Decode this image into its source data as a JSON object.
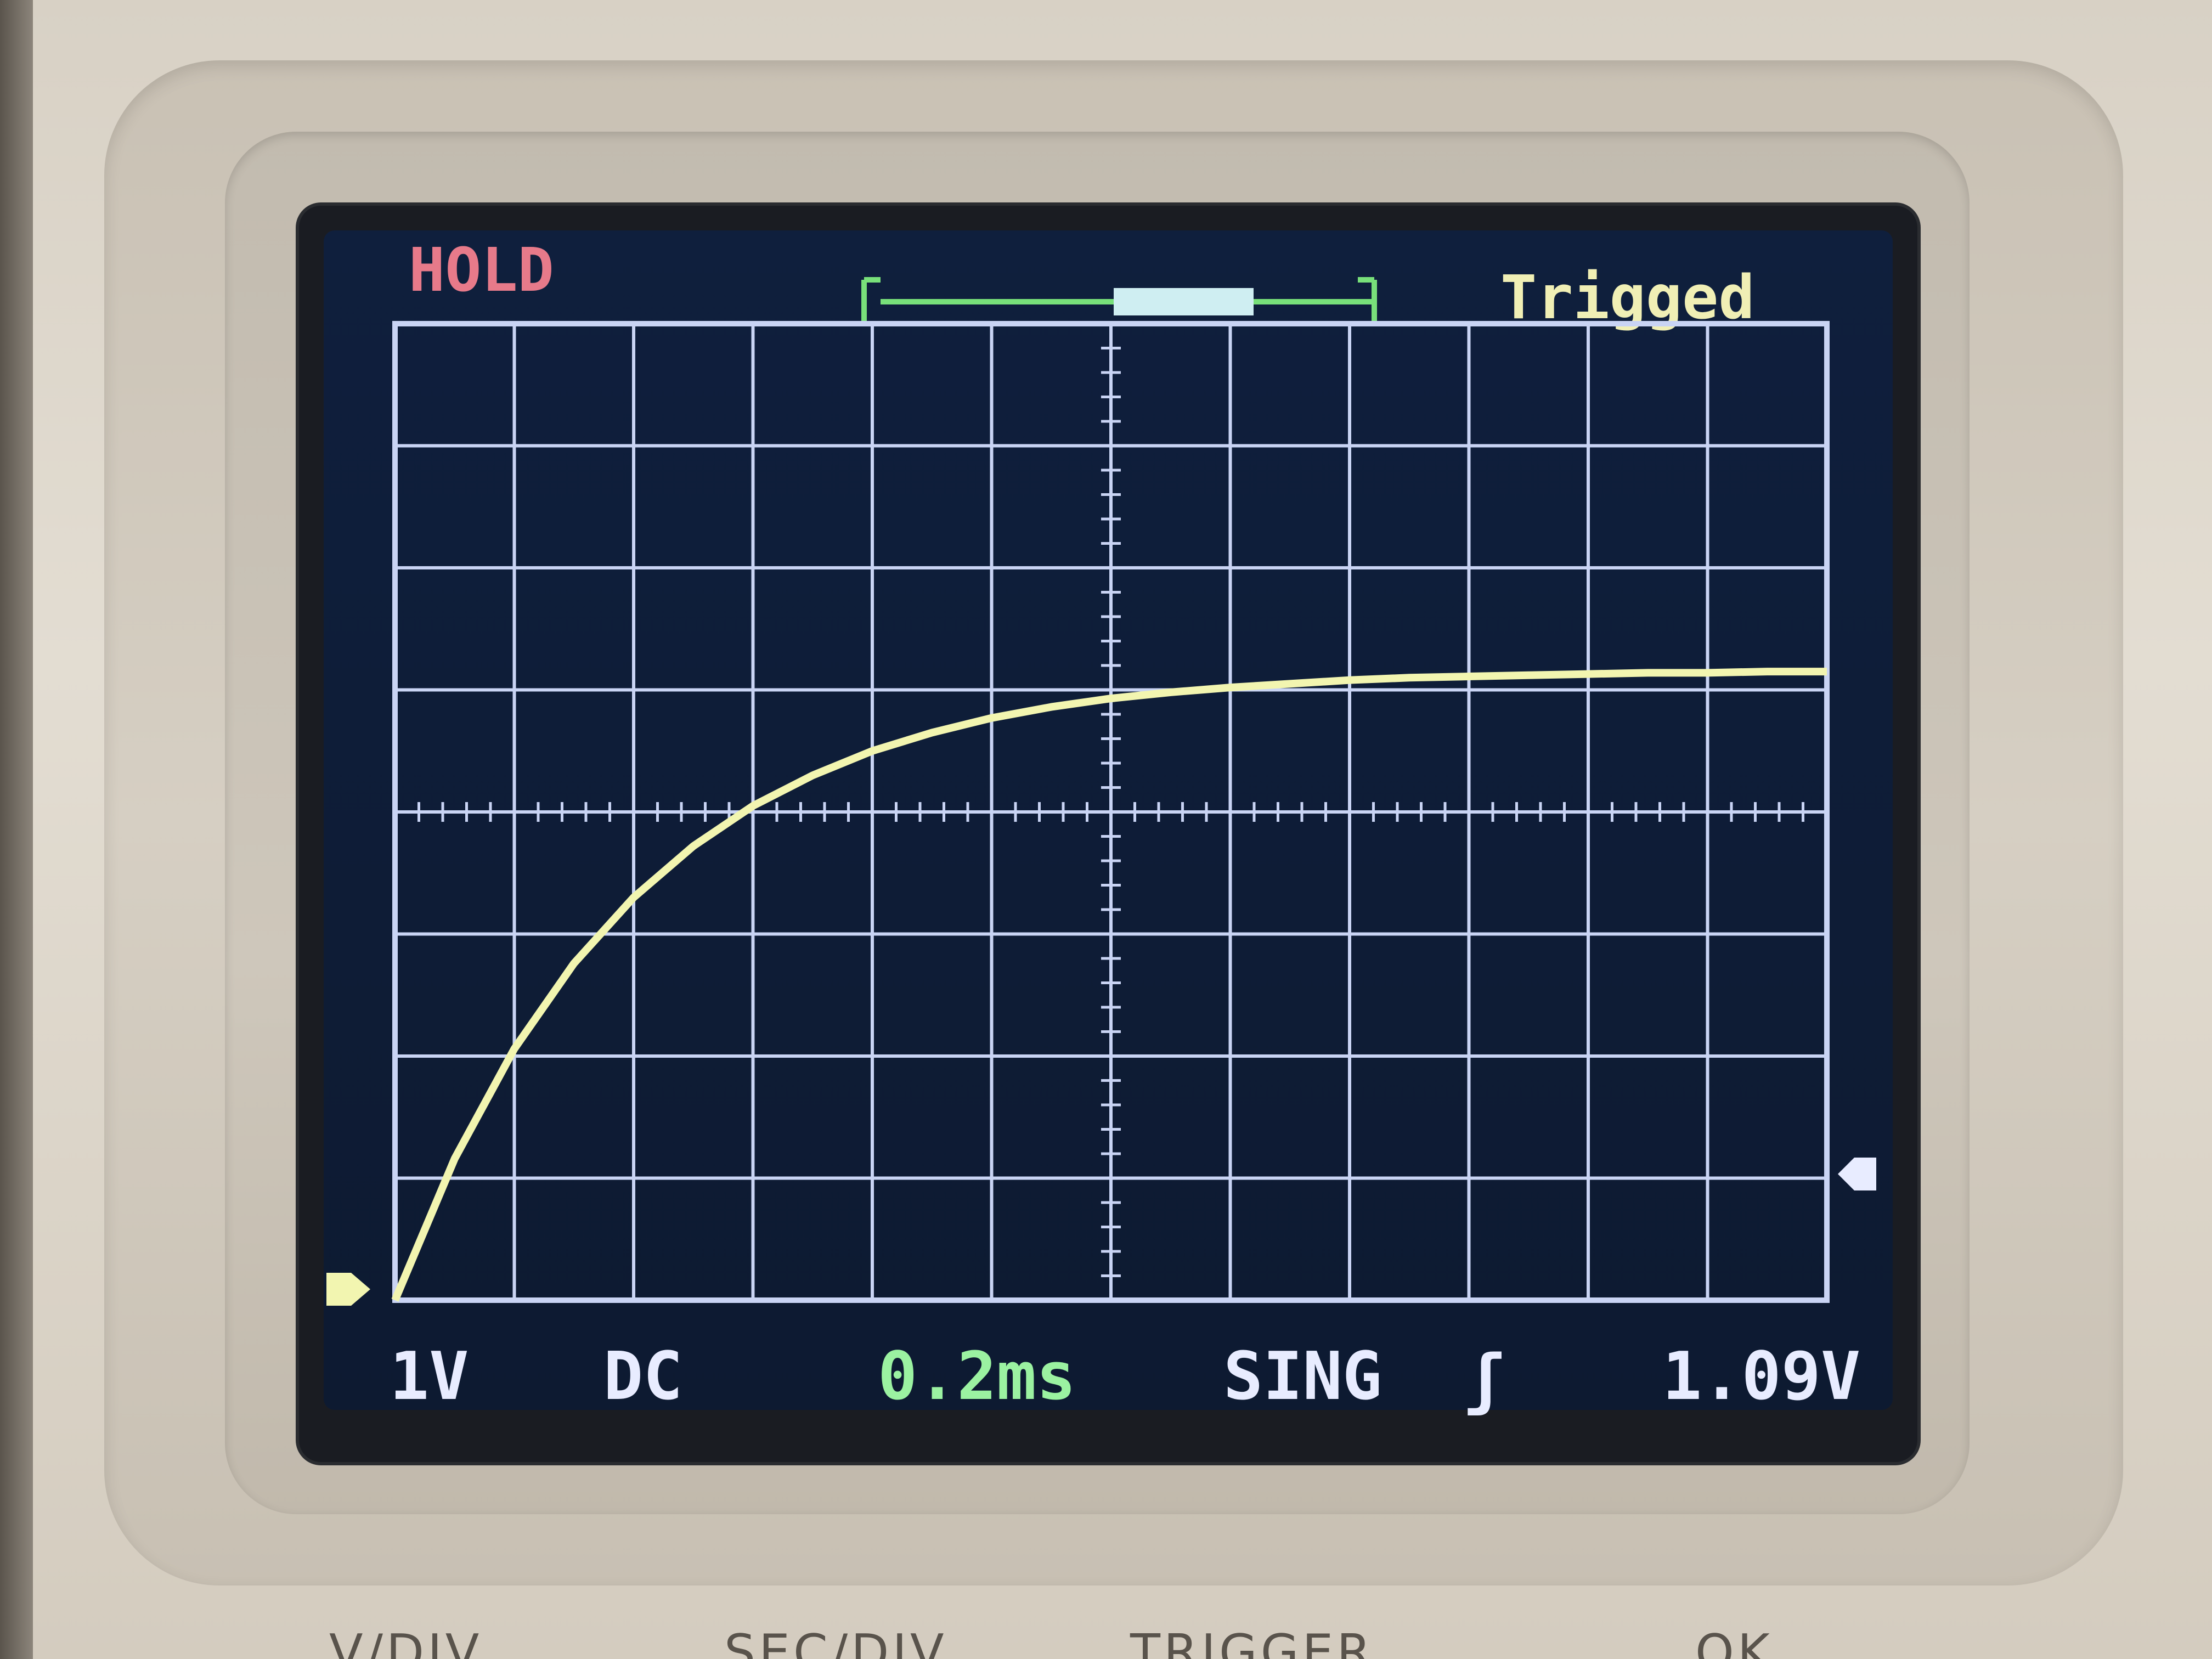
{
  "status": {
    "hold_label": "HOLD",
    "trigger_state": "Trigged"
  },
  "readouts": {
    "volts_per_div": "1V",
    "coupling": "DC",
    "time_per_div": "0.2ms",
    "trigger_mode": "SING",
    "trigger_edge_symbol": "ʃ",
    "trigger_level": "1.09V"
  },
  "buttons": {
    "vdiv": "V/DIV",
    "sec_div": "SEC/DIV",
    "trigger": "TRIGGER",
    "ok": "OK"
  },
  "colors": {
    "screen_bg": "#0b1a33",
    "grid": "#c9d4f4",
    "trace": "#f2f5b0",
    "hold": "#e77a8a",
    "trigged": "#f0efb5",
    "timebase": "#9bf2a1",
    "text": "#e8ecff"
  },
  "chart_data": {
    "type": "line",
    "x": [
      0,
      0.1,
      0.2,
      0.3,
      0.4,
      0.5,
      0.6,
      0.7,
      0.8,
      0.9,
      1.0,
      1.1,
      1.2,
      1.3,
      1.4,
      1.5,
      1.6,
      1.7,
      1.8,
      1.9,
      2.0,
      2.1,
      2.2,
      2.3,
      2.4
    ],
    "values": [
      0,
      1.16,
      2.06,
      2.76,
      3.3,
      3.72,
      4.05,
      4.3,
      4.5,
      4.65,
      4.77,
      4.86,
      4.93,
      4.98,
      5.02,
      5.05,
      5.08,
      5.1,
      5.11,
      5.12,
      5.13,
      5.14,
      5.14,
      5.15,
      5.15
    ],
    "xlim": [
      0,
      2.4
    ],
    "ylim": [
      0,
      8
    ],
    "grid": true
  }
}
